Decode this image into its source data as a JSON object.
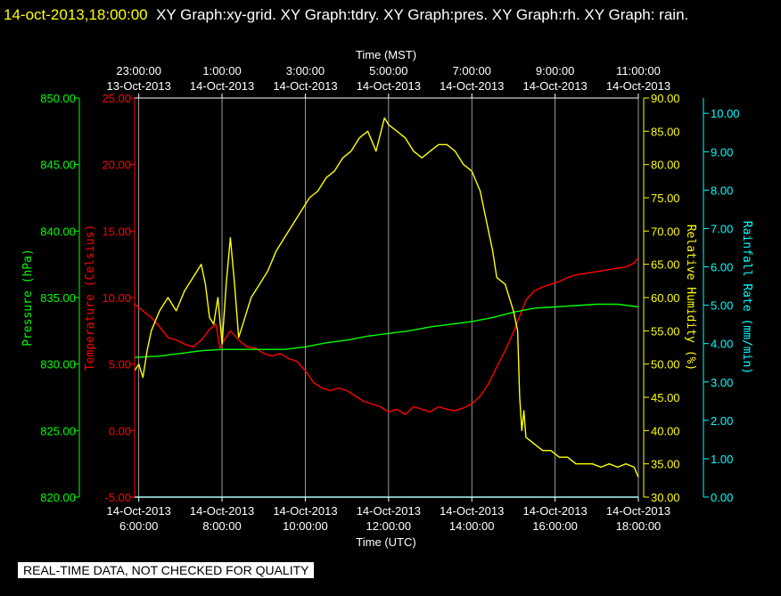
{
  "header": {
    "timestamp": "14-oct-2013,18:00:00",
    "rest": "XY Graph:xy-grid.  XY Graph:tdry.  XY Graph:pres.  XY Graph:rh.  XY Graph: rain."
  },
  "footer": {
    "notice": "REAL-TIME DATA, NOT CHECKED FOR QUALITY"
  },
  "colors": {
    "pressure": "#00ff00",
    "temperature": "#ff0000",
    "humidity": "#ffff00",
    "rain": "#00ffff",
    "grid": "#ffffff"
  },
  "chart_data": {
    "type": "line",
    "grid": true,
    "xlabel_bottom": "Time (UTC)",
    "xlabel_top": "Time (MST)",
    "x_range": [
      5.9,
      18.0
    ],
    "x_ticks_bottom": [
      {
        "x": 6,
        "date": "14-Oct-2013",
        "time": "6:00:00"
      },
      {
        "x": 8,
        "date": "14-Oct-2013",
        "time": "8:00:00"
      },
      {
        "x": 10,
        "date": "14-Oct-2013",
        "time": "10:00:00"
      },
      {
        "x": 12,
        "date": "14-Oct-2013",
        "time": "12:00:00"
      },
      {
        "x": 14,
        "date": "14-Oct-2013",
        "time": "14:00:00"
      },
      {
        "x": 16,
        "date": "14-Oct-2013",
        "time": "16:00:00"
      },
      {
        "x": 18,
        "date": "14-Oct-2013",
        "time": "18:00:00"
      }
    ],
    "x_ticks_top": [
      {
        "x": 6,
        "time": "23:00:00",
        "date": "13-Oct-2013"
      },
      {
        "x": 8,
        "time": "1:00:00",
        "date": "14-Oct-2013"
      },
      {
        "x": 10,
        "time": "3:00:00",
        "date": "14-Oct-2013"
      },
      {
        "x": 12,
        "time": "5:00:00",
        "date": "14-Oct-2013"
      },
      {
        "x": 14,
        "time": "7:00:00",
        "date": "14-Oct-2013"
      },
      {
        "x": 16,
        "time": "9:00:00",
        "date": "14-Oct-2013"
      },
      {
        "x": 18,
        "time": "11:00:00",
        "date": "14-Oct-2013"
      }
    ],
    "axes": {
      "pressure": {
        "label": "Pressure (hPa)",
        "range": [
          820,
          850
        ],
        "ticks": [
          "820.00",
          "825.00",
          "830.00",
          "835.00",
          "840.00",
          "845.00",
          "850.00"
        ]
      },
      "temperature": {
        "label": "Temperature (Celsius)",
        "range": [
          -5,
          25
        ],
        "ticks": [
          "-5.00",
          "0.00",
          "5.00",
          "10.00",
          "15.00",
          "20.00",
          "25.00"
        ]
      },
      "humidity": {
        "label": "Relative Humidity (%)",
        "range": [
          30,
          90
        ],
        "ticks": [
          "30.00",
          "35.00",
          "40.00",
          "45.00",
          "50.00",
          "55.00",
          "60.00",
          "65.00",
          "70.00",
          "75.00",
          "80.00",
          "85.00",
          "90.00"
        ]
      },
      "rain": {
        "label": "Rainfall Rate (mm/min)",
        "range": [
          0,
          10.4
        ],
        "ticks": [
          "0.00",
          "1.00",
          "2.00",
          "3.00",
          "4.00",
          "5.00",
          "6.00",
          "7.00",
          "8.00",
          "9.00",
          "10.00"
        ]
      }
    },
    "series": [
      {
        "name": "tdry",
        "axis": "temperature",
        "x": [
          5.9,
          6.1,
          6.3,
          6.5,
          6.7,
          6.9,
          7.1,
          7.3,
          7.5,
          7.7,
          7.85,
          7.95,
          8.05,
          8.2,
          8.4,
          8.6,
          8.8,
          9.0,
          9.2,
          9.4,
          9.6,
          9.8,
          10.0,
          10.2,
          10.4,
          10.6,
          10.8,
          11.0,
          11.2,
          11.4,
          11.6,
          11.8,
          12.0,
          12.2,
          12.4,
          12.6,
          12.8,
          13.0,
          13.2,
          13.4,
          13.6,
          13.8,
          14.0,
          14.2,
          14.4,
          14.6,
          14.8,
          15.0,
          15.15,
          15.3,
          15.5,
          15.7,
          15.9,
          16.1,
          16.3,
          16.5,
          16.7,
          16.9,
          17.1,
          17.3,
          17.5,
          17.7,
          17.9,
          18.0
        ],
        "y": [
          9.5,
          9.0,
          8.5,
          7.8,
          7.0,
          6.8,
          6.5,
          6.3,
          6.8,
          7.6,
          8.0,
          6.2,
          6.8,
          7.5,
          6.8,
          6.3,
          6.2,
          5.8,
          5.6,
          5.8,
          5.4,
          5.2,
          4.5,
          3.6,
          3.2,
          3.0,
          3.2,
          3.0,
          2.6,
          2.2,
          2.0,
          1.8,
          1.4,
          1.6,
          1.2,
          1.8,
          1.6,
          1.4,
          1.8,
          1.6,
          1.5,
          1.7,
          2.0,
          2.6,
          3.5,
          4.8,
          6.0,
          7.4,
          8.6,
          9.8,
          10.5,
          10.8,
          11.0,
          11.2,
          11.5,
          11.7,
          11.8,
          11.9,
          12.0,
          12.1,
          12.2,
          12.3,
          12.6,
          13.0
        ]
      },
      {
        "name": "pres",
        "axis": "pressure",
        "x": [
          5.9,
          6.5,
          7.0,
          7.5,
          8.0,
          8.5,
          9.0,
          9.5,
          10.0,
          10.5,
          11.0,
          11.5,
          12.0,
          12.5,
          13.0,
          13.5,
          14.0,
          14.5,
          15.0,
          15.5,
          16.0,
          16.5,
          17.0,
          17.5,
          18.0
        ],
        "y": [
          830.5,
          830.6,
          830.8,
          831.0,
          831.1,
          831.1,
          831.1,
          831.1,
          831.3,
          831.6,
          831.8,
          832.1,
          832.3,
          832.5,
          832.8,
          833.0,
          833.2,
          833.5,
          833.9,
          834.2,
          834.3,
          834.4,
          834.5,
          834.5,
          834.3
        ]
      },
      {
        "name": "rh",
        "axis": "humidity",
        "x": [
          5.9,
          6.0,
          6.1,
          6.2,
          6.3,
          6.5,
          6.7,
          6.9,
          7.1,
          7.3,
          7.5,
          7.6,
          7.7,
          7.8,
          7.9,
          8.0,
          8.1,
          8.2,
          8.3,
          8.4,
          8.5,
          8.7,
          8.9,
          9.1,
          9.3,
          9.5,
          9.7,
          9.9,
          10.1,
          10.3,
          10.5,
          10.7,
          10.9,
          11.1,
          11.3,
          11.5,
          11.7,
          11.9,
          12.0,
          12.2,
          12.4,
          12.6,
          12.8,
          13.0,
          13.2,
          13.4,
          13.6,
          13.8,
          14.0,
          14.2,
          14.4,
          14.5,
          14.6,
          14.8,
          15.0,
          15.1,
          15.15,
          15.2,
          15.25,
          15.3,
          15.5,
          15.7,
          15.9,
          16.1,
          16.3,
          16.5,
          16.7,
          16.9,
          17.1,
          17.3,
          17.5,
          17.7,
          17.9,
          18.0
        ],
        "y": [
          49,
          50,
          48,
          52,
          55,
          58,
          60,
          58,
          61,
          63,
          65,
          62,
          57,
          56,
          60,
          53,
          62,
          69,
          62,
          54,
          56,
          60,
          62,
          64,
          67,
          69,
          71,
          73,
          75,
          76,
          78,
          79,
          81,
          82,
          84,
          85,
          82,
          87,
          86,
          85,
          84,
          82,
          81,
          82,
          83,
          83,
          82,
          80,
          79,
          76,
          70,
          67,
          63,
          62,
          58,
          55,
          45,
          40,
          43,
          39,
          38,
          37,
          37,
          36,
          36,
          35,
          35,
          35,
          34.5,
          35,
          34.5,
          35,
          34.5,
          33
        ]
      },
      {
        "name": "rain",
        "axis": "rain",
        "x": [
          5.9,
          18.0
        ],
        "y": [
          0,
          0
        ]
      }
    ]
  }
}
